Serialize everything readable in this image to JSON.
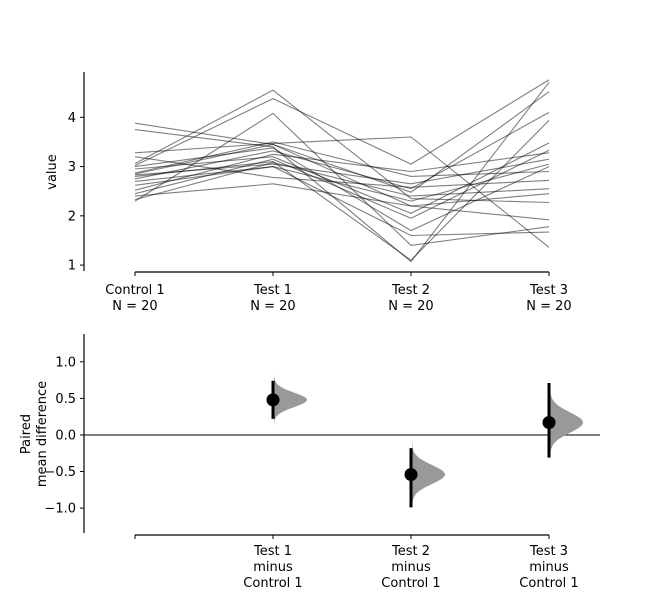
{
  "chart_data": [
    {
      "type": "line",
      "ylabel": "value",
      "ylim": [
        0.88,
        4.92
      ],
      "yticks": [
        "1",
        "2",
        "3",
        "4"
      ],
      "categories": [
        {
          "name": "Control 1",
          "n": "N = 20"
        },
        {
          "name": "Test 1",
          "n": "N = 20"
        },
        {
          "name": "Test 2",
          "n": "N = 20"
        },
        {
          "name": "Test 3",
          "n": "N = 20"
        }
      ],
      "line_color": "#000000",
      "series": [
        {
          "values": [
            3.88,
            3.45,
            2.48,
            4.52
          ]
        },
        {
          "values": [
            3.75,
            3.4,
            1.07,
            4.71
          ]
        },
        {
          "values": [
            3.28,
            3.47,
            3.6,
            1.36
          ]
        },
        {
          "values": [
            3.06,
            4.55,
            2.35,
            2.27
          ]
        },
        {
          "values": [
            3.02,
            4.38,
            3.05,
            4.76
          ]
        },
        {
          "values": [
            2.95,
            3.2,
            2.05,
            3.48
          ]
        },
        {
          "values": [
            2.87,
            3.5,
            2.8,
            2.9
          ]
        },
        {
          "values": [
            2.83,
            3.05,
            2.65,
            3.15
          ]
        },
        {
          "values": [
            2.8,
            3.1,
            1.1,
            3.94
          ]
        },
        {
          "values": [
            2.75,
            3.32,
            2.55,
            4.1
          ]
        },
        {
          "values": [
            2.7,
            3.0,
            1.6,
            1.67
          ]
        },
        {
          "values": [
            2.62,
            3.0,
            2.3,
            3.05
          ]
        },
        {
          "values": [
            2.52,
            3.25,
            2.9,
            3.28
          ]
        },
        {
          "values": [
            2.45,
            3.15,
            1.95,
            3.33
          ]
        },
        {
          "values": [
            2.4,
            2.65,
            2.2,
            1.92
          ]
        },
        {
          "values": [
            2.33,
            3.08,
            2.4,
            2.55
          ]
        },
        {
          "values": [
            3.2,
            2.78,
            2.58,
            2.72
          ]
        },
        {
          "values": [
            2.3,
            4.08,
            1.4,
            1.78
          ]
        },
        {
          "values": [
            2.85,
            3.45,
            2.2,
            2.45
          ]
        },
        {
          "values": [
            3.0,
            3.38,
            1.7,
            3.0
          ]
        }
      ]
    },
    {
      "type": "scatter",
      "ylabel": "Paired\nmean difference",
      "ylim": [
        -1.34,
        1.38
      ],
      "yticks": [
        "1.0",
        "0.5",
        "0.0",
        "−0.5",
        "−1.0"
      ],
      "ytick_values": [
        1.0,
        0.5,
        0.0,
        -0.5,
        -1.0
      ],
      "categories": [
        "",
        "Test 1\nminus\nControl 1",
        "Test 2\nminus\nControl 1",
        "Test 3\nminus\nControl 1"
      ],
      "zero_line": true,
      "dist_color": "#999999",
      "comparisons": [
        {
          "category_index": 1,
          "mean": 0.48,
          "ci": [
            0.22,
            0.74
          ],
          "dist_range": [
            0.05,
            0.93
          ],
          "dist_sd": 0.1
        },
        {
          "category_index": 2,
          "mean": -0.54,
          "ci": [
            -0.99,
            -0.18
          ],
          "dist_range": [
            -1.33,
            0.1
          ],
          "dist_sd": 0.13
        },
        {
          "category_index": 3,
          "mean": 0.17,
          "ci": [
            -0.31,
            0.71
          ],
          "dist_range": [
            -0.72,
            1.12
          ],
          "dist_sd": 0.14
        }
      ]
    }
  ]
}
